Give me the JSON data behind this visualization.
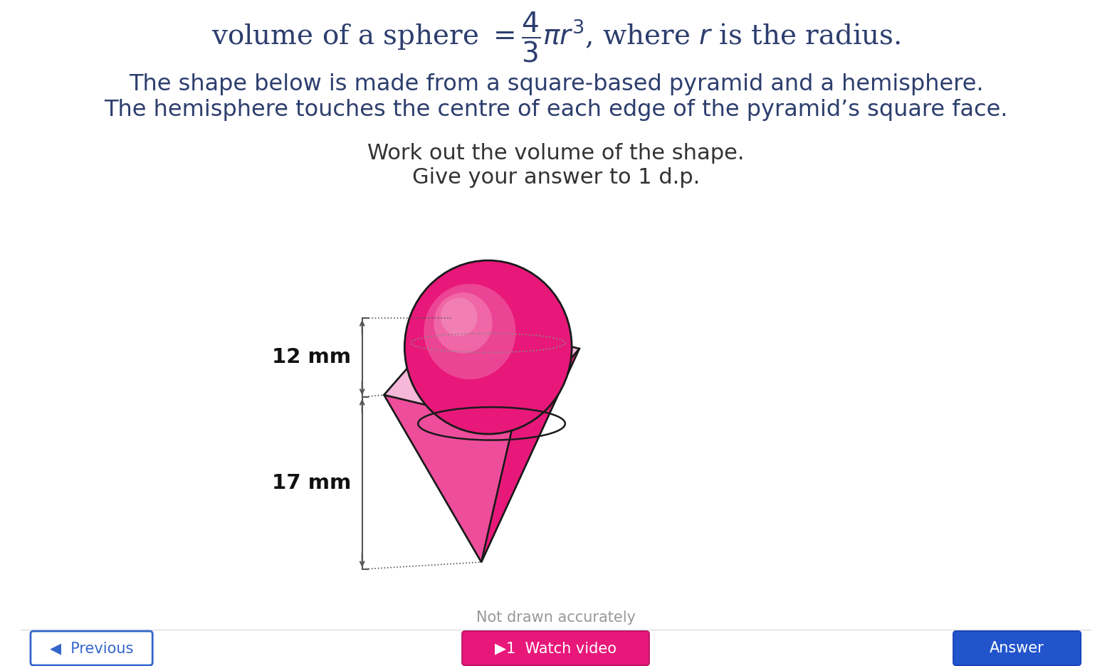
{
  "text_line1": "The shape below is made from a square-based pyramid and a hemisphere.",
  "text_line2": "The hemisphere touches the centre of each edge of the pyramid’s square face.",
  "work_line1": "Work out the volume of the shape.",
  "work_line2": "Give your answer to 1 d.p.",
  "dim1_label": "12 mm",
  "dim2_label": "17 mm",
  "not_drawn": "Not drawn accurately",
  "bg_color": "#ffffff",
  "text_color": "#2d3e6e",
  "dim_color": "#666666",
  "pink_main": "#e8187a",
  "pink_mid": "#ee4d9b",
  "pink_light": "#f28dc0",
  "pink_lighter": "#f5b8d8",
  "pink_face": "#f06aaa",
  "dark_edge": "#1a1a1a",
  "sphere_highlight": "#e8569c",
  "sphere_mid": "#d4156e"
}
